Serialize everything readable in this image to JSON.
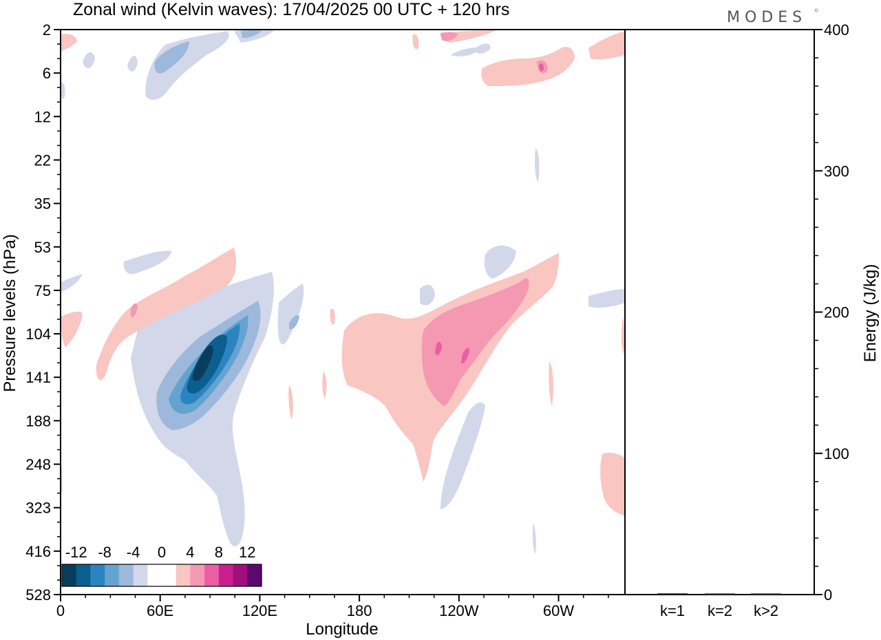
{
  "header": {
    "title": "Zonal wind (Kelvin waves):  17/04/2025  00 UTC  + 120 hrs",
    "brand": "MODES"
  },
  "chart_data": [
    {
      "type": "heatmap",
      "title": "Zonal wind (Kelvin waves):  17/04/2025  00 UTC  + 120 hrs",
      "xlabel": "Longitude",
      "ylabel": "Pressure levels (hPa)",
      "x_ticks": [
        "0",
        "60E",
        "120E",
        "180",
        "120W",
        "60W"
      ],
      "x_tick_values_deg_east": [
        0,
        60,
        120,
        180,
        240,
        300
      ],
      "xlim_deg_east": [
        0,
        340
      ],
      "y_ticks": [
        "2",
        "6",
        "12",
        "22",
        "35",
        "53",
        "75",
        "104",
        "141",
        "188",
        "248",
        "323",
        "416",
        "528"
      ],
      "y_scale": "pressure levels (uneven), top = 2 hPa, bottom = 528 hPa",
      "colorbar": {
        "labels": [
          "-12",
          "-8",
          "-4",
          "0",
          "4",
          "8",
          "12"
        ],
        "label_values": [
          -12,
          -8,
          -4,
          0,
          4,
          8,
          12
        ],
        "colors": [
          "#0a3d5c",
          "#0b5f8f",
          "#2a84c0",
          "#64a3cf",
          "#9cb8db",
          "#d3d7ea",
          "#ffffff",
          "#ffffff",
          "#f9c6c2",
          "#f598b2",
          "#ea5ea4",
          "#c8208f",
          "#a20f7c",
          "#5c0a6e"
        ]
      },
      "features": [
        {
          "name": "negative anomaly tongue",
          "lon_center": 95,
          "pressure_center": 141,
          "min_value": -12
        },
        {
          "name": "positive anomaly band",
          "lon_center": 240,
          "pressure_center": 120,
          "max_value": 8
        },
        {
          "name": "upper-level positive band",
          "lon_center": 60,
          "pressure_center": 90,
          "max_value": 6
        }
      ]
    },
    {
      "type": "bar",
      "categories": [
        "k=1",
        "k=2",
        "k>2"
      ],
      "values": [
        0.5,
        0.4,
        0.4
      ],
      "ylabel": "Energy (J/kg)",
      "ylim": [
        0,
        400
      ],
      "y_ticks": [
        "0",
        "100",
        "200",
        "300",
        "400"
      ],
      "y_tick_values": [
        0,
        100,
        200,
        300,
        400
      ]
    }
  ]
}
